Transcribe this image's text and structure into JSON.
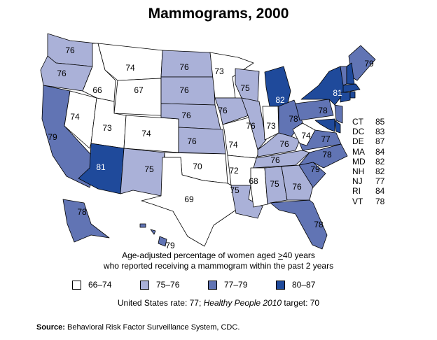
{
  "title": "Mammograms, 2000",
  "colors": {
    "66-74": "#ffffff",
    "75-76": "#aab1d8",
    "77-79": "#6174b4",
    "80-87": "#1f4a9b"
  },
  "legend": [
    {
      "label": "66–74",
      "color": "#ffffff"
    },
    {
      "label": "75–76",
      "color": "#aab1d8"
    },
    {
      "label": "77–79",
      "color": "#6174b4"
    },
    {
      "label": "80–87",
      "color": "#1f4a9b"
    }
  ],
  "caption_line1_pre": "Age-adjusted percentage of women aged ",
  "caption_ge": ">",
  "caption_line1_post": "40 years",
  "caption_line2": "who reported receiving a mammogram within the past 2 years",
  "rate_text": "United States rate: 77; ",
  "rate_italic": "Healthy People 2010",
  "rate_tail": " target: 70",
  "source_label": "Source:",
  "source_text": " Behavioral Risk Factor Surveillance System, CDC.",
  "small_states": [
    {
      "state": "CT",
      "value": "85"
    },
    {
      "state": "DC",
      "value": "83"
    },
    {
      "state": "DE",
      "value": "87"
    },
    {
      "state": "MA",
      "value": "84"
    },
    {
      "state": "MD",
      "value": "82"
    },
    {
      "state": "NH",
      "value": "82"
    },
    {
      "state": "NJ",
      "value": "77"
    },
    {
      "state": "RI",
      "value": "84"
    },
    {
      "state": "VT",
      "value": "78"
    }
  ],
  "states": {
    "WA": 76,
    "OR": 76,
    "CA": 79,
    "NV": 74,
    "ID": 66,
    "MT": 74,
    "WY": 67,
    "UT": 73,
    "AZ": 81,
    "CO": 74,
    "NM": 75,
    "ND": 76,
    "SD": 76,
    "NE": 76,
    "KS": 76,
    "OK": 70,
    "TX": 69,
    "MN": 73,
    "IA": 76,
    "MO": 74,
    "AR": 72,
    "LA": 75,
    "WI": 75,
    "IL": 76,
    "MI": 82,
    "IN": 73,
    "OH": 78,
    "KY": 76,
    "TN": 76,
    "MS": 68,
    "AL": 75,
    "GA": 76,
    "FL": 78,
    "SC": 79,
    "NC": 78,
    "VA": 77,
    "WV": 74,
    "PA": 78,
    "NY": 81,
    "ME": 79,
    "AK": 78,
    "HI": 79,
    "VT": 78,
    "NH": 82,
    "MA": 84,
    "CT": 85,
    "RI": 84,
    "NJ": 77,
    "DE": 87,
    "MD": 82
  }
}
